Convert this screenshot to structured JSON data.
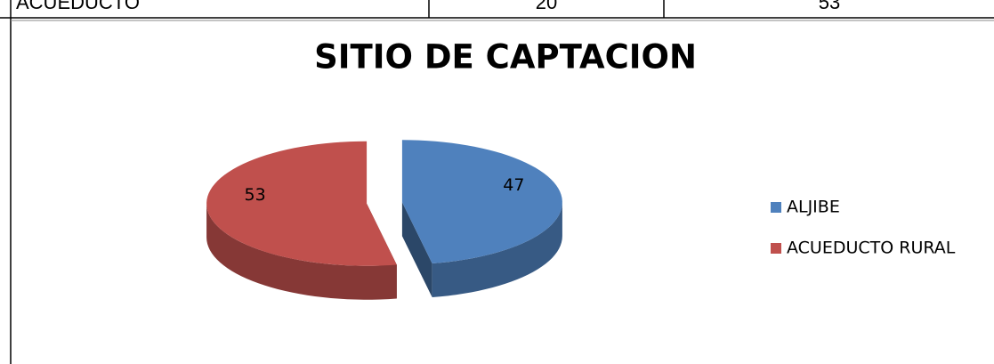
{
  "table": {
    "rows": [
      [
        "ACUEDUCTO",
        "20",
        "53"
      ]
    ]
  },
  "chart_data": {
    "type": "pie",
    "title": "SITIO DE CAPTACION",
    "categories": [
      "ALJIBE",
      "ACUEDUCTO RURAL"
    ],
    "values": [
      47,
      53
    ],
    "colors": [
      "#4f81bd",
      "#c0504d"
    ],
    "legend": "right"
  }
}
